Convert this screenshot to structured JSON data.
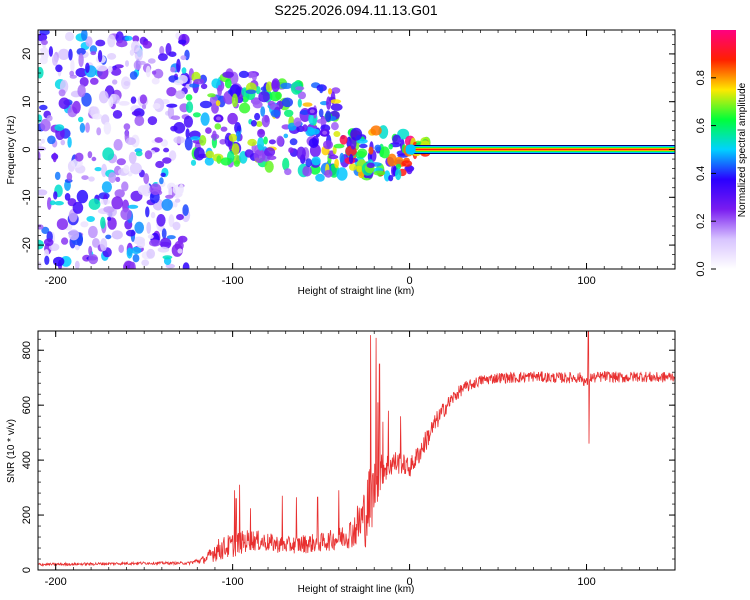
{
  "title": "S225.2026.094.11.13.G01",
  "chart_data": [
    {
      "type": "heatmap",
      "name": "spectrogram",
      "xlabel": "Height of straight line (km)",
      "ylabel": "Frequency (Hz)",
      "xlim": [
        -210,
        150
      ],
      "ylim": [
        -25,
        25
      ],
      "xticks": [
        -200,
        -100,
        0,
        100
      ],
      "yticks": [
        20,
        10,
        0,
        -10,
        -20
      ],
      "colorbar": {
        "label": "Normalized spectral amplitude",
        "range": [
          0.0,
          1.0
        ],
        "ticks": [
          "0.0",
          "0.2",
          "0.4",
          "0.6",
          "0.8"
        ],
        "colors": [
          "#ffffff",
          "#d8c4ff",
          "#7a1cf0",
          "#2a00ff",
          "#00d2ff",
          "#00ff3a",
          "#ffe800",
          "#ff2000",
          "#ff0080"
        ]
      },
      "carrier": {
        "frequency_hz": 0,
        "x_start": 0,
        "x_end": 150,
        "amplitude": 0.9
      },
      "clusters": [
        {
          "x": [
            -210,
            -125
          ],
          "y": [
            -25,
            25
          ],
          "amp": [
            0.05,
            0.55
          ],
          "count": 380
        },
        {
          "x": [
            -125,
            -80
          ],
          "y": [
            -3,
            16
          ],
          "amp": [
            0.2,
            0.75
          ],
          "count": 120
        },
        {
          "x": [
            -80,
            -40
          ],
          "y": [
            -6,
            14
          ],
          "amp": [
            0.2,
            0.8
          ],
          "count": 110
        },
        {
          "x": [
            -40,
            0
          ],
          "y": [
            -6,
            4
          ],
          "amp": [
            0.3,
            0.95
          ],
          "count": 90
        },
        {
          "x": [
            0,
            10
          ],
          "y": [
            -1,
            2
          ],
          "amp": [
            0.6,
            1.0
          ],
          "count": 25
        }
      ],
      "bright_spots": [
        {
          "x": -55,
          "y": 8,
          "amp": 0.3
        },
        {
          "x": -48,
          "y": 3.5,
          "amp": 0.3
        },
        {
          "x": -108,
          "y": 6.5,
          "amp": 0.3
        },
        {
          "x": 98,
          "y": 0,
          "amp": 0.5
        }
      ]
    },
    {
      "type": "line",
      "name": "snr",
      "xlabel": "Height of straight line (km)",
      "ylabel": "SNR (10 * v/v)",
      "xlim": [
        -210,
        150
      ],
      "ylim": [
        0,
        870
      ],
      "xticks": [
        -200,
        -100,
        0,
        100
      ],
      "yticks": [
        800,
        600,
        400,
        200,
        0
      ],
      "color": "#e83030",
      "series": [
        {
          "name": "SNR",
          "x": [
            -210,
            -180,
            -150,
            -125,
            -115,
            -110,
            -100,
            -90,
            -80,
            -70,
            -60,
            -50,
            -40,
            -32,
            -25,
            -22,
            -20,
            -18,
            -15,
            -10,
            -5,
            0,
            5,
            10,
            15,
            20,
            25,
            30,
            40,
            50,
            60,
            70,
            80,
            90,
            97,
            100,
            102,
            105,
            110,
            120,
            130,
            140,
            150
          ],
          "y": [
            20,
            22,
            25,
            25,
            40,
            70,
            90,
            110,
            100,
            90,
            95,
            100,
            115,
            140,
            200,
            260,
            300,
            330,
            370,
            390,
            390,
            370,
            420,
            480,
            540,
            590,
            630,
            660,
            690,
            700,
            700,
            705,
            700,
            700,
            700,
            680,
            700,
            700,
            705,
            700,
            705,
            700,
            705
          ],
          "noise": [
            5,
            5,
            5,
            5,
            15,
            40,
            45,
            40,
            35,
            30,
            35,
            35,
            40,
            60,
            120,
            140,
            110,
            80,
            60,
            50,
            40,
            35,
            40,
            40,
            35,
            30,
            25,
            22,
            20,
            20,
            20,
            20,
            20,
            20,
            20,
            20,
            20,
            20,
            20,
            20,
            20,
            20,
            20
          ]
        }
      ],
      "spikes": [
        {
          "x": -99,
          "y": 290
        },
        {
          "x": -98,
          "y": 260
        },
        {
          "x": -96,
          "y": 310
        },
        {
          "x": -90,
          "y": 225
        },
        {
          "x": -72,
          "y": 270
        },
        {
          "x": -64,
          "y": 265
        },
        {
          "x": -52,
          "y": 265
        },
        {
          "x": -40,
          "y": 290
        },
        {
          "x": -22,
          "y": 855
        },
        {
          "x": -19,
          "y": 845
        },
        {
          "x": -18,
          "y": 610
        },
        {
          "x": -17,
          "y": 750
        },
        {
          "x": -15,
          "y": 540
        },
        {
          "x": -12,
          "y": 580
        },
        {
          "x": -5,
          "y": 560
        },
        {
          "x": 101,
          "y": 870
        },
        {
          "x": 101.5,
          "y": 460
        }
      ]
    }
  ]
}
